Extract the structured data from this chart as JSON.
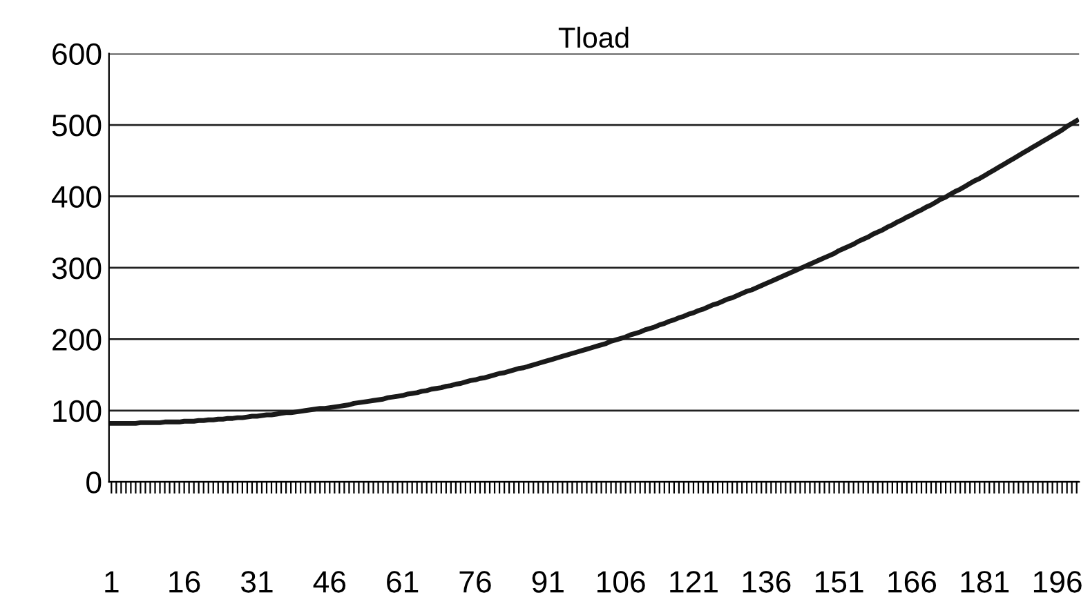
{
  "chart_data": {
    "type": "line",
    "title": "Tload",
    "categories": [
      "1",
      null,
      null,
      null,
      null,
      null,
      null,
      null,
      null,
      null,
      null,
      null,
      null,
      null,
      null,
      "16",
      null,
      null,
      null,
      null,
      null,
      null,
      null,
      null,
      null,
      null,
      null,
      null,
      null,
      null,
      "31",
      null,
      null,
      null,
      null,
      null,
      null,
      null,
      null,
      null,
      null,
      null,
      null,
      null,
      null,
      "46",
      null,
      null,
      null,
      null,
      null,
      null,
      null,
      null,
      null,
      null,
      null,
      null,
      null,
      null,
      "61",
      null,
      null,
      null,
      null,
      null,
      null,
      null,
      null,
      null,
      null,
      null,
      null,
      null,
      null,
      "76",
      null,
      null,
      null,
      null,
      null,
      null,
      null,
      null,
      null,
      null,
      null,
      null,
      null,
      null,
      "91",
      null,
      null,
      null,
      null,
      null,
      null,
      null,
      null,
      null,
      null,
      null,
      null,
      null,
      null,
      "106",
      null,
      null,
      null,
      null,
      null,
      null,
      null,
      null,
      null,
      null,
      null,
      null,
      null,
      null,
      "121",
      null,
      null,
      null,
      null,
      null,
      null,
      null,
      null,
      null,
      null,
      null,
      null,
      null,
      null,
      "136",
      null,
      null,
      null,
      null,
      null,
      null,
      null,
      null,
      null,
      null,
      null,
      null,
      null,
      null,
      "151",
      null,
      null,
      null,
      null,
      null,
      null,
      null,
      null,
      null,
      null,
      null,
      null,
      null,
      null,
      "166",
      null,
      null,
      null,
      null,
      null,
      null,
      null,
      null,
      null,
      null,
      null,
      null,
      null,
      null,
      "181",
      null,
      null,
      null,
      null,
      null,
      null,
      null,
      null,
      null,
      null,
      null,
      null,
      null,
      null,
      "196",
      null,
      null,
      null,
      null
    ],
    "series": [
      {
        "color": "#1a1a1a",
        "values": [
          82,
          82,
          82,
          82,
          82,
          82,
          83,
          83,
          83,
          83,
          83,
          84,
          84,
          84,
          84,
          85,
          85,
          85,
          86,
          86,
          87,
          87,
          88,
          88,
          89,
          89,
          90,
          90,
          91,
          92,
          92,
          93,
          94,
          94,
          95,
          96,
          97,
          97,
          98,
          99,
          100,
          101,
          102,
          103,
          103,
          104,
          105,
          106,
          107,
          108,
          110,
          111,
          112,
          113,
          114,
          115,
          116,
          118,
          119,
          120,
          121,
          123,
          124,
          125,
          127,
          128,
          130,
          131,
          132,
          134,
          135,
          137,
          138,
          140,
          142,
          143,
          145,
          146,
          148,
          150,
          152,
          153,
          155,
          157,
          159,
          160,
          162,
          164,
          166,
          168,
          170,
          172,
          174,
          176,
          178,
          180,
          182,
          184,
          186,
          188,
          190,
          192,
          194,
          197,
          199,
          201,
          203,
          206,
          208,
          210,
          213,
          215,
          217,
          220,
          222,
          225,
          227,
          230,
          232,
          235,
          237,
          240,
          242,
          245,
          248,
          250,
          253,
          256,
          258,
          261,
          264,
          267,
          269,
          272,
          275,
          278,
          281,
          284,
          287,
          290,
          293,
          296,
          299,
          302,
          305,
          308,
          311,
          314,
          317,
          320,
          324,
          327,
          330,
          333,
          337,
          340,
          343,
          347,
          350,
          353,
          357,
          360,
          364,
          367,
          371,
          374,
          378,
          381,
          385,
          388,
          392,
          396,
          399,
          403,
          407,
          410,
          414,
          418,
          422,
          425,
          429,
          433,
          437,
          441,
          445,
          449,
          453,
          457,
          461,
          465,
          469,
          473,
          477,
          481,
          485,
          489,
          493,
          498,
          502,
          506
        ]
      }
    ],
    "ylim": [
      0,
      600
    ],
    "yticks": [
      0,
      100,
      200,
      300,
      400,
      500,
      600
    ],
    "grid": "y",
    "marker": "none",
    "line_style": "solid"
  }
}
